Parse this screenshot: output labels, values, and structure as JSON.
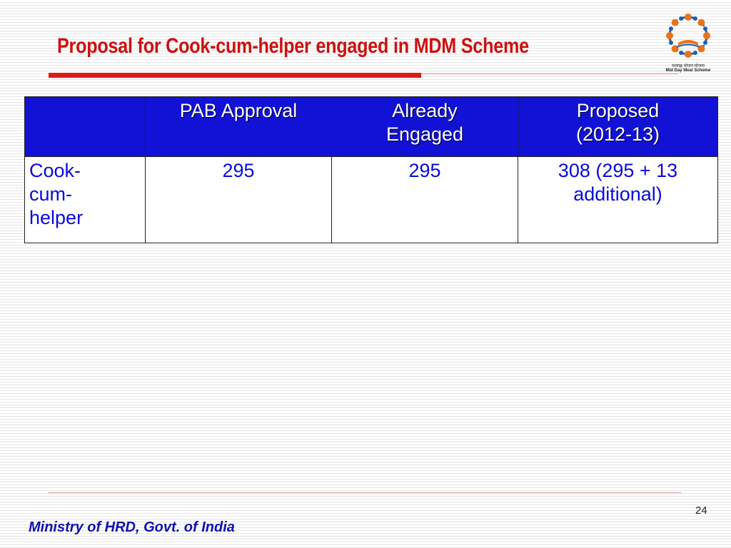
{
  "slide": {
    "title": "Proposal for Cook-cum-helper engaged in MDM Scheme",
    "page_number": "24",
    "footer": "Ministry of HRD, Govt. of India"
  },
  "logo": {
    "caption_hindi": "मध्याह्न भोजन योजना",
    "caption_english": "Mid Day Meal Scheme"
  },
  "table": {
    "headers": [
      "",
      "PAB Approval",
      "Already Engaged",
      "Proposed (2012-13)"
    ],
    "rows": [
      {
        "label": "Cook-cum-helper",
        "pab_approval": "295",
        "already_engaged": "295",
        "proposed": "308 (295 + 13 additional)"
      }
    ]
  },
  "colors": {
    "title": "#cc1111",
    "header_bg": "#1212d6",
    "cell_text": "#0a0ae0",
    "footer_text": "#1010b0"
  }
}
